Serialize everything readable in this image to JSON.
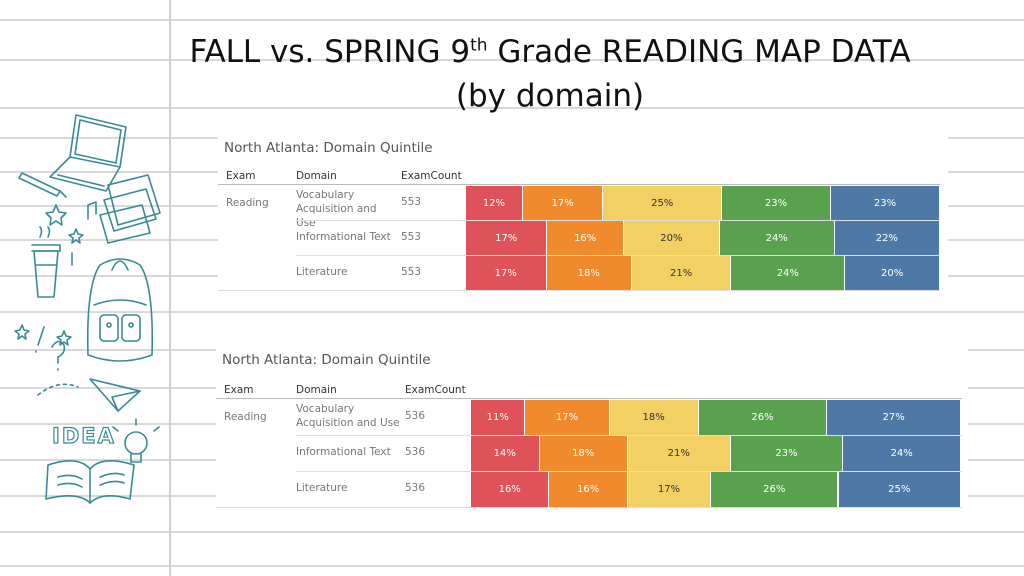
{
  "slide": {
    "title_line1_pre": "FALL vs. SPRING 9",
    "title_sup": "th",
    "title_line1_post": " Grade READING MAP DATA",
    "title_line2": "(by domain)"
  },
  "headers": {
    "exam": "Exam",
    "domain": "Domain",
    "count": "ExamCount"
  },
  "doodle_text": "IDEA",
  "colors": {
    "q1": "#e05259",
    "q2": "#f08a2c",
    "q3": "#f2d063",
    "q4": "#59a14f",
    "q5": "#4e79a7",
    "ink": "#3a8a95",
    "rule": "#d7d7d7"
  },
  "chart_data": [
    {
      "type": "bar",
      "stacked": true,
      "orientation": "horizontal",
      "title": "North Atlanta: Domain Quintile",
      "exam": "Reading",
      "categories": [
        "Vocabulary Acquisition and Use",
        "Informational Text",
        "Literature"
      ],
      "exam_counts": [
        "553",
        "553",
        "553"
      ],
      "series": [
        {
          "color": "#e05259",
          "values": [
            12,
            17,
            17
          ],
          "labels": [
            "12%",
            "17%",
            "17%"
          ]
        },
        {
          "color": "#f08a2c",
          "values": [
            17,
            16,
            18
          ],
          "labels": [
            "17%",
            "16%",
            "18%"
          ]
        },
        {
          "color": "#f2d063",
          "values": [
            25,
            20,
            21
          ],
          "labels": [
            "25%",
            "20%",
            "21%"
          ]
        },
        {
          "color": "#59a14f",
          "values": [
            23,
            24,
            24
          ],
          "labels": [
            "23%",
            "24%",
            "24%"
          ]
        },
        {
          "color": "#4e79a7",
          "values": [
            23,
            22,
            20
          ],
          "labels": [
            "23%",
            "22%",
            "20%"
          ]
        }
      ]
    },
    {
      "type": "bar",
      "stacked": true,
      "orientation": "horizontal",
      "title": "North Atlanta: Domain Quintile",
      "exam": "Reading",
      "categories": [
        "Vocabulary Acquisition and Use",
        "Informational Text",
        "Literature"
      ],
      "exam_counts": [
        "536",
        "536",
        "536"
      ],
      "series": [
        {
          "color": "#e05259",
          "values": [
            11,
            14,
            16
          ],
          "labels": [
            "11%",
            "14%",
            "16%"
          ]
        },
        {
          "color": "#f08a2c",
          "values": [
            17,
            18,
            16
          ],
          "labels": [
            "17%",
            "18%",
            "16%"
          ]
        },
        {
          "color": "#f2d063",
          "values": [
            18,
            21,
            17
          ],
          "labels": [
            "18%",
            "21%",
            "17%"
          ]
        },
        {
          "color": "#59a14f",
          "values": [
            26,
            23,
            26
          ],
          "labels": [
            "26%",
            "23%",
            "26%"
          ]
        },
        {
          "color": "#4e79a7",
          "values": [
            27,
            24,
            25
          ],
          "labels": [
            "27%",
            "24%",
            "25%"
          ]
        }
      ]
    }
  ]
}
